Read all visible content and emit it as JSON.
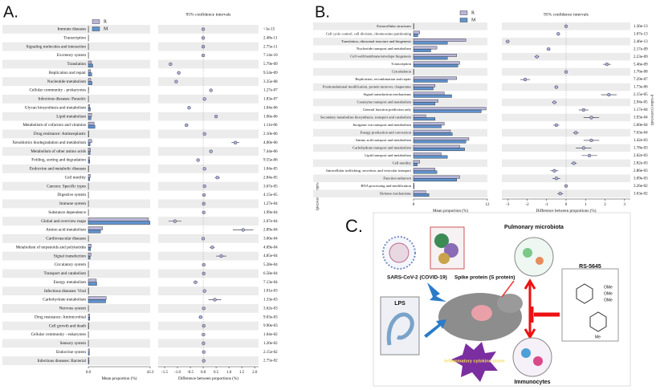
{
  "chart_data": [
    {
      "type": "errorbar",
      "panel_label": "A.",
      "title": "95% confidence intervals",
      "xlabel": "Mean proportion (%)",
      "diff_xlabel": "Difference between proportions (%)",
      "y2label": "p-value (corrected)",
      "categories": [
        "Immune diseases",
        "Transcription",
        "Signaling molecules and interaction",
        "Excretory system",
        "Translation",
        "Replication and repair",
        "Nucleotide metabolism",
        "Cellular community - prokaryotes",
        "Infectious diseases: Parasitic",
        "Glycan biosynthesis and metabolism",
        "Lipid metabolism",
        "Metabolism of cofactors and vitamins",
        "Drug resistance: Antineoplastic",
        "Xenobiotics biodegradation and metabolism",
        "Metabolism of other amino acids",
        "Folding, sorting and degradation",
        "Endocrine and metabolic diseases",
        "Cell motility",
        "Cancers: Specific types",
        "Digestive system",
        "Immune system",
        "Substance dependence",
        "Global and overview maps",
        "Amino acid metabolism",
        "Cardiovascular diseases",
        "Metabolism of terpenoids and polyketides",
        "Signal transduction",
        "Circulatory system",
        "Transport and catabolism",
        "Energy metabolism",
        "Infectious diseases: Viral",
        "Carbohydrate metabolism",
        "Nervous system",
        "Drug resistance: Antimicrobial",
        "Cell growth and death",
        "Cellular community - eukaryotes",
        "Sensory system",
        "Endocrine system",
        "Infectious diseases: Bacterial"
      ],
      "series": [
        {
          "name": "R",
          "color": "#b7b6d9",
          "values": [
            0.1,
            0.1,
            0.1,
            0.1,
            2.2,
            1.6,
            1.7,
            0.2,
            0.1,
            0.9,
            2.3,
            4.0,
            0.3,
            2.4,
            1.5,
            0.8,
            0.2,
            1.4,
            0.1,
            0.1,
            0.1,
            0.1,
            42.0,
            10.0,
            0.1,
            2.0,
            1.8,
            0.1,
            0.1,
            5.6,
            0.2,
            12.5,
            0.1,
            0.9,
            0.3,
            0.1,
            0.1,
            0.7,
            0.5
          ]
        },
        {
          "name": "M",
          "color": "#5f93cf",
          "values": [
            0.1,
            0.1,
            0.1,
            0.1,
            3.1,
            2.4,
            2.6,
            0.1,
            0.1,
            1.4,
            1.8,
            4.6,
            0.3,
            1.2,
            1.2,
            1.0,
            0.2,
            0.9,
            0.1,
            0.1,
            0.1,
            0.1,
            43.2,
            8.5,
            0.1,
            1.6,
            1.2,
            0.1,
            0.1,
            5.9,
            0.2,
            12.1,
            0.1,
            1.0,
            0.3,
            0.1,
            0.1,
            0.7,
            0.5
          ]
        }
      ],
      "xlim": [
        0,
        43.3
      ],
      "xticks": [
        {
          "value": 0,
          "label": "0.0"
        },
        43.3
      ],
      "diff_color": "#aeb3e0",
      "diff_values": [
        0.0,
        0.0,
        0.0,
        0.0,
        -1.27,
        -0.95,
        -1.05,
        0.3,
        0.05,
        -0.55,
        0.5,
        -0.65,
        0.05,
        1.25,
        0.3,
        -0.2,
        0.05,
        0.55,
        0.05,
        0.03,
        0.02,
        0.02,
        -1.1,
        1.55,
        0.0,
        0.35,
        0.7,
        0.02,
        0.02,
        -0.3,
        0.05,
        0.45,
        0.02,
        -0.1,
        0.02,
        0.01,
        0.01,
        0.02,
        0.02
      ],
      "diff_errors": [
        0.02,
        0.02,
        0.02,
        0.02,
        0.05,
        0.05,
        0.05,
        0.04,
        0.03,
        0.06,
        0.05,
        0.07,
        0.03,
        0.15,
        0.05,
        0.05,
        0.03,
        0.1,
        0.03,
        0.03,
        0.03,
        0.03,
        0.25,
        0.4,
        0.02,
        0.1,
        0.2,
        0.02,
        0.02,
        0.08,
        0.04,
        0.25,
        0.02,
        0.08,
        0.03,
        0.02,
        0.02,
        0.03,
        0.03
      ],
      "diff_xlim": [
        -1.75,
        2.15
      ],
      "diff_xticks": [
        {
          "value": -1.5,
          "label": "-1.5"
        },
        {
          "value": -1.0,
          "label": "-1.0"
        },
        {
          "value": -0.5,
          "label": "-0.5"
        },
        {
          "value": 0,
          "label": "0.0"
        },
        0.5,
        {
          "value": 1.0,
          "label": "1.0"
        },
        1.5,
        {
          "value": 2.0,
          "label": "2.0"
        }
      ],
      "p_values": [
        "<1e-15",
        "2.48e-11",
        "2.75e-11",
        "7.14e-10",
        "5.79e-09",
        "9.54e-09",
        "3.35e-08",
        "1.27e-07",
        "1.83e-07",
        "1.04e-06",
        "1.06e-06",
        "1.11e-06",
        "2.10e-06",
        "4.00e-06",
        "7.44e-06",
        "9.55e-06",
        "1.04e-05",
        "2.84e-05",
        "3.67e-05",
        "4.15e-05",
        "1.27e-04",
        "1.99e-04",
        "2.07e-04",
        "2.89e-04",
        "3.00e-04",
        "4.09e-04",
        "4.85e-04",
        "5.28e-04",
        "6.58e-04",
        "7.13e-04",
        "1.01e-03",
        "1.33e-03",
        "3.62e-03",
        "9.03e-03",
        "9.90e-03",
        "1.04e-02",
        "1.20e-02",
        "2.15e-02",
        "2.75e-02"
      ]
    },
    {
      "type": "errorbar",
      "panel_label": "B.",
      "title": "95% confidence intervals",
      "xlabel": "Mean proportion (%)",
      "diff_xlabel": "Difference between proportions (%)",
      "y2label": "p-value (corrected)",
      "categories": [
        "Extracellular structures",
        "Cell cycle control, cell division, chromosome partitioning",
        "Translation, ribosomal structure and biogenesis",
        "Nucleotide transport and metabolism",
        "Cell wall/membrane/envelope biogenesis",
        "Transcription",
        "Cytoskeleton",
        "Replication, recombination and repair",
        "Posttranslational modification, protein turnover, chaperones",
        "Signal transduction mechanisms",
        "Coenzyme transport and metabolism",
        "General function prediction only",
        "Secondary metabolites biosynthesis, transport and catabolism",
        "Inorganic ion transport and metabolism",
        "Energy production and conversion",
        "Amino acid transport and metabolism",
        "Carbohydrate transport and metabolism",
        "Lipid transport and metabolism",
        "Cell motility",
        "Intracellular trafficking, secretion, and vesicular transport",
        "Function unknown",
        "RNA processing and modification",
        "Defense mechanisms"
      ],
      "series": [
        {
          "name": "R",
          "color": "#b7b6d9",
          "values": [
            0.05,
            1.0,
            8.5,
            3.8,
            7.0,
            7.5,
            0.05,
            7.0,
            3.5,
            5.0,
            4.0,
            11.8,
            2.0,
            5.0,
            6.0,
            9.0,
            7.5,
            4.5,
            1.0,
            3.5,
            7.5,
            0.1,
            2.0
          ]
        },
        {
          "name": "M",
          "color": "#5f93cf",
          "values": [
            0.05,
            0.7,
            5.5,
            2.8,
            5.5,
            7.2,
            0.05,
            5.5,
            3.2,
            6.2,
            3.5,
            11.0,
            3.5,
            4.5,
            6.3,
            8.5,
            8.3,
            5.5,
            0.6,
            3.8,
            7.0,
            0.1,
            2.5
          ]
        }
      ],
      "xlim": [
        0,
        12
      ],
      "xticks": [
        0,
        12
      ],
      "diff_color": "#aeb3e0",
      "diff_values": [
        0.0,
        -0.4,
        -3.0,
        -0.9,
        -1.5,
        2.1,
        0.0,
        -2.1,
        -0.5,
        2.2,
        -0.6,
        0.9,
        1.3,
        -0.5,
        0.5,
        1.3,
        0.9,
        1.2,
        0.4,
        -0.6,
        -0.5,
        0.0,
        -0.3
      ],
      "diff_errors": [
        0.02,
        0.08,
        0.1,
        0.1,
        0.12,
        0.2,
        0.02,
        0.25,
        0.1,
        0.4,
        0.12,
        0.25,
        0.4,
        0.15,
        0.15,
        0.4,
        0.4,
        0.4,
        0.15,
        0.2,
        0.2,
        0.02,
        0.15
      ],
      "diff_xlim": [
        -3.3,
        3.3
      ],
      "diff_xticks": [
        -3,
        -2,
        -1,
        0,
        1,
        2,
        3
      ],
      "p_values": [
        "1.36e-13",
        "1.67e-13",
        "2.46e-13",
        "2.17e-09",
        "2.23e-09",
        "5.46e-09",
        "1.76e-08",
        "7.29e-07",
        "1.73e-06",
        "2.15e-05",
        "2.94e-05",
        "1.17e-04",
        "3.93e-04",
        "5.60e-04",
        "7.63e-04",
        "1.42e-03",
        "1.78e-03",
        "2.62e-03",
        "2.82e-03",
        "2.86e-03",
        "3.09e-03",
        "3.26e-02",
        "3.63e-02"
      ]
    }
  ],
  "diagram": {
    "panel_label": "C.",
    "virus": "SARS-CoV-2 (COVID-19)",
    "spike": "Spike protein (S protein)",
    "microbiota": "Pulmonary microbiota",
    "drug": "RS-5645",
    "lps": "LPS",
    "storm": "Inflammatory cytokine storm",
    "immuno": "Immunocytes",
    "substituents": [
      "OMe",
      "OMe",
      "OMe",
      "Me"
    ]
  }
}
